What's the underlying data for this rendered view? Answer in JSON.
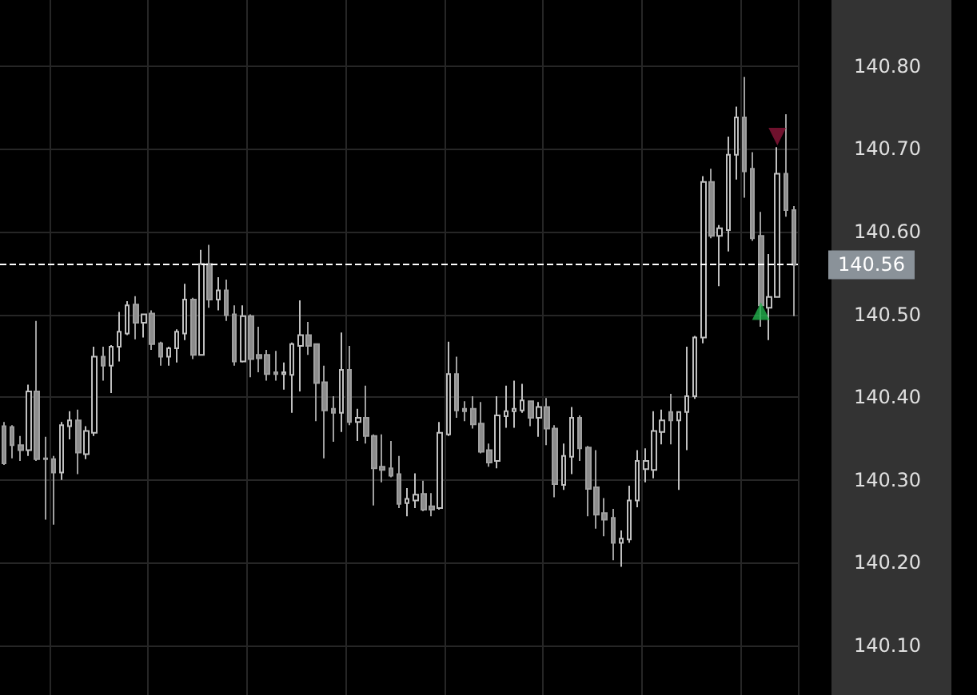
{
  "chart_data": {
    "type": "candlestick",
    "categories": [
      null,
      null,
      null,
      null,
      null,
      null,
      null,
      null,
      null,
      null,
      null,
      null,
      null,
      null,
      null,
      null,
      null,
      null,
      null,
      null,
      null,
      null,
      null,
      null,
      null,
      null,
      null,
      null,
      null,
      null,
      null,
      null,
      null,
      null,
      null,
      null,
      null,
      null,
      null,
      null,
      null,
      null,
      null,
      null,
      null,
      null,
      null,
      null,
      null,
      null,
      null,
      null,
      null,
      null,
      null,
      null,
      null,
      null,
      null,
      null,
      null,
      null,
      null,
      null,
      null,
      null,
      null,
      null,
      null,
      null,
      null,
      null,
      null,
      null,
      null,
      null,
      null,
      null,
      null,
      null,
      null,
      null,
      null,
      null,
      null,
      null,
      null,
      null,
      null,
      null,
      null,
      null,
      null,
      null,
      null,
      null,
      null
    ],
    "ohlc": [
      [
        140.365,
        140.37,
        140.318,
        140.32
      ],
      [
        140.364,
        140.366,
        140.326,
        140.342
      ],
      [
        140.342,
        140.353,
        140.323,
        140.336
      ],
      [
        140.336,
        140.415,
        140.329,
        140.407
      ],
      [
        140.407,
        140.492,
        140.323,
        140.325
      ],
      [
        140.326,
        140.352,
        140.252,
        140.325
      ],
      [
        140.325,
        140.329,
        140.246,
        140.309
      ],
      [
        140.309,
        140.37,
        140.3,
        140.366
      ],
      [
        140.365,
        140.383,
        140.349,
        140.372
      ],
      [
        140.372,
        140.385,
        140.307,
        140.333
      ],
      [
        140.331,
        140.365,
        140.325,
        140.359
      ],
      [
        140.357,
        140.461,
        140.353,
        140.449
      ],
      [
        140.449,
        140.461,
        140.42,
        140.438
      ],
      [
        140.438,
        140.463,
        140.405,
        140.461
      ],
      [
        140.461,
        140.503,
        140.443,
        140.479
      ],
      [
        140.477,
        140.516,
        140.475,
        140.511
      ],
      [
        140.512,
        140.522,
        140.47,
        140.49
      ],
      [
        140.49,
        140.501,
        140.472,
        140.5
      ],
      [
        140.501,
        140.505,
        140.457,
        140.464
      ],
      [
        140.465,
        140.467,
        140.438,
        140.449
      ],
      [
        140.449,
        140.461,
        140.438,
        140.459
      ],
      [
        140.459,
        140.482,
        140.442,
        140.479
      ],
      [
        140.477,
        140.537,
        140.469,
        140.518
      ],
      [
        140.518,
        140.52,
        140.446,
        140.451
      ],
      [
        140.451,
        140.578,
        140.45,
        140.561
      ],
      [
        140.561,
        140.584,
        140.508,
        140.518
      ],
      [
        140.518,
        140.545,
        140.505,
        140.529
      ],
      [
        140.529,
        140.542,
        140.492,
        140.499
      ],
      [
        140.5,
        140.511,
        140.438,
        140.443
      ],
      [
        140.443,
        140.511,
        140.442,
        140.498
      ],
      [
        140.498,
        140.5,
        140.424,
        140.446
      ],
      [
        140.451,
        140.485,
        140.43,
        140.447
      ],
      [
        140.451,
        140.457,
        140.42,
        140.428
      ],
      [
        140.43,
        140.456,
        140.42,
        140.428
      ],
      [
        140.428,
        140.442,
        140.409,
        140.43
      ],
      [
        140.427,
        140.466,
        140.381,
        140.464
      ],
      [
        140.462,
        140.517,
        140.407,
        140.475
      ],
      [
        140.475,
        140.491,
        140.451,
        140.462
      ],
      [
        140.464,
        140.465,
        140.371,
        140.417
      ],
      [
        140.418,
        140.438,
        140.326,
        140.384
      ],
      [
        140.386,
        140.401,
        140.346,
        140.381
      ],
      [
        140.381,
        140.478,
        140.358,
        140.433
      ],
      [
        140.433,
        140.462,
        140.366,
        140.37
      ],
      [
        140.37,
        140.386,
        140.347,
        140.375
      ],
      [
        140.375,
        140.414,
        140.344,
        140.353
      ],
      [
        140.353,
        140.355,
        140.269,
        140.314
      ],
      [
        140.316,
        140.355,
        140.297,
        140.312
      ],
      [
        140.314,
        140.347,
        140.303,
        140.305
      ],
      [
        140.307,
        140.329,
        140.266,
        140.271
      ],
      [
        140.272,
        140.29,
        140.256,
        140.277
      ],
      [
        140.275,
        140.308,
        140.266,
        140.282
      ],
      [
        140.283,
        140.299,
        140.262,
        140.264
      ],
      [
        140.268,
        140.284,
        140.256,
        140.264
      ],
      [
        140.266,
        140.37,
        140.264,
        140.357
      ],
      [
        140.355,
        140.467,
        140.353,
        140.428
      ],
      [
        140.428,
        140.449,
        140.375,
        140.384
      ],
      [
        140.386,
        140.395,
        140.371,
        140.383
      ],
      [
        140.386,
        140.401,
        140.362,
        140.367
      ],
      [
        140.368,
        140.394,
        140.332,
        140.334
      ],
      [
        140.336,
        140.344,
        140.316,
        140.321
      ],
      [
        140.323,
        140.401,
        140.314,
        140.378
      ],
      [
        140.377,
        140.414,
        140.363,
        140.383
      ],
      [
        140.383,
        140.42,
        140.363,
        140.386
      ],
      [
        140.384,
        140.416,
        140.381,
        140.396
      ],
      [
        140.395,
        140.396,
        140.365,
        140.375
      ],
      [
        140.375,
        140.394,
        140.352,
        140.388
      ],
      [
        140.388,
        140.399,
        140.342,
        140.362
      ],
      [
        140.362,
        140.366,
        140.279,
        140.295
      ],
      [
        140.294,
        140.344,
        140.288,
        140.329
      ],
      [
        140.328,
        140.388,
        140.307,
        140.375
      ],
      [
        140.375,
        140.378,
        140.323,
        140.338
      ],
      [
        140.339,
        140.341,
        140.256,
        140.289
      ],
      [
        140.291,
        140.336,
        140.241,
        140.258
      ],
      [
        140.26,
        140.278,
        140.232,
        140.252
      ],
      [
        140.254,
        140.265,
        140.203,
        140.224
      ],
      [
        140.224,
        140.239,
        140.195,
        140.229
      ],
      [
        140.228,
        140.293,
        140.224,
        140.275
      ],
      [
        140.275,
        140.336,
        140.267,
        140.323
      ],
      [
        140.313,
        140.338,
        140.297,
        140.323
      ],
      [
        140.312,
        140.383,
        140.302,
        140.359
      ],
      [
        140.358,
        140.385,
        140.343,
        140.372
      ],
      [
        140.382,
        140.404,
        140.343,
        140.372
      ],
      [
        140.372,
        140.383,
        140.288,
        140.382
      ],
      [
        140.382,
        140.461,
        140.336,
        140.401
      ],
      [
        140.401,
        140.474,
        140.398,
        140.472
      ],
      [
        140.472,
        140.667,
        140.465,
        140.66
      ],
      [
        140.66,
        140.676,
        140.592,
        140.595
      ],
      [
        140.595,
        140.608,
        140.534,
        140.604
      ],
      [
        140.602,
        140.715,
        140.576,
        140.693
      ],
      [
        140.693,
        140.751,
        140.663,
        140.738
      ],
      [
        140.738,
        140.787,
        140.641,
        140.673
      ],
      [
        140.676,
        140.696,
        140.589,
        140.592
      ],
      [
        140.595,
        140.624,
        140.485,
        140.511
      ],
      [
        140.508,
        140.573,
        140.469,
        140.521
      ],
      [
        140.521,
        140.702,
        140.52,
        140.67
      ],
      [
        140.67,
        140.742,
        140.618,
        140.626
      ],
      [
        140.626,
        140.631,
        140.498,
        140.56
      ]
    ],
    "series": [
      {
        "type": "scatter",
        "color": "#8b1538",
        "marker": "triangle",
        "values": [
          null,
          null,
          null,
          null,
          null,
          null,
          null,
          null,
          null,
          null,
          null,
          null,
          null,
          null,
          null,
          null,
          null,
          null,
          null,
          null,
          null,
          null,
          null,
          null,
          null,
          null,
          null,
          null,
          null,
          null,
          null,
          null,
          null,
          null,
          null,
          null,
          null,
          null,
          null,
          null,
          null,
          null,
          null,
          null,
          null,
          null,
          null,
          null,
          null,
          null,
          null,
          null,
          null,
          null,
          null,
          null,
          null,
          null,
          null,
          null,
          null,
          null,
          null,
          null,
          null,
          null,
          null,
          null,
          null,
          null,
          null,
          null,
          null,
          null,
          null,
          null,
          null,
          null,
          null,
          null,
          null,
          null,
          null,
          null,
          null,
          null,
          null,
          null,
          null,
          null,
          null,
          null,
          null,
          null,
          140.715,
          null,
          null
        ]
      },
      {
        "type": "scatter",
        "color": "#22b14c",
        "marker": "triangle",
        "values": [
          null,
          null,
          null,
          null,
          null,
          null,
          null,
          null,
          null,
          null,
          null,
          null,
          null,
          null,
          null,
          null,
          null,
          null,
          null,
          null,
          null,
          null,
          null,
          null,
          null,
          null,
          null,
          null,
          null,
          null,
          null,
          null,
          null,
          null,
          null,
          null,
          null,
          null,
          null,
          null,
          null,
          null,
          null,
          null,
          null,
          null,
          null,
          null,
          null,
          null,
          null,
          null,
          null,
          null,
          null,
          null,
          null,
          null,
          null,
          null,
          null,
          null,
          null,
          null,
          null,
          null,
          null,
          null,
          null,
          null,
          null,
          null,
          null,
          null,
          null,
          null,
          null,
          null,
          null,
          null,
          null,
          null,
          null,
          null,
          null,
          null,
          null,
          null,
          null,
          null,
          null,
          null,
          140.504,
          null,
          null,
          null,
          null
        ]
      }
    ],
    "ylim": [
      140.04,
      140.88
    ],
    "yticks": [
      {
        "value": 140.1,
        "label": "140.10"
      },
      {
        "value": 140.2,
        "label": "140.20"
      },
      {
        "value": 140.3,
        "label": "140.30"
      },
      {
        "value": 140.4,
        "label": "140.40"
      },
      {
        "value": 140.5,
        "label": "140.50"
      },
      {
        "value": 140.6,
        "label": "140.60"
      },
      {
        "value": 140.7,
        "label": "140.70"
      },
      {
        "value": 140.8,
        "label": "140.80"
      }
    ],
    "tick_labels": "y",
    "ref_lines": [
      {
        "axis": "y",
        "value": 140.56,
        "label": "140.56",
        "color": "#ffffff",
        "line_style": "dashed"
      }
    ],
    "grid": true
  }
}
